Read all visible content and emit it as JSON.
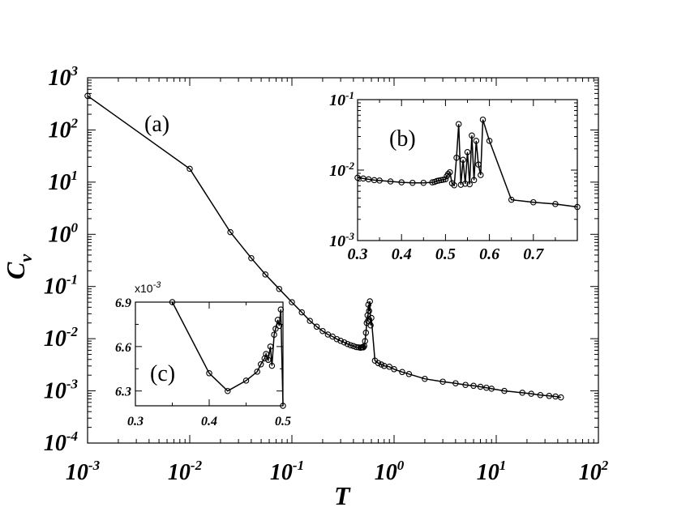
{
  "chart_data": [
    {
      "id": "main",
      "panel_label": "(a)",
      "type": "line",
      "xscale": "log",
      "yscale": "log",
      "xlabel": "T",
      "ylabel_base": "C",
      "ylabel_sub": "v",
      "xlim": [
        0.001,
        100
      ],
      "ylim": [
        0.0001,
        1000
      ],
      "x_tick_labels": [
        {
          "base": "10",
          "exp": "-3"
        },
        {
          "base": "10",
          "exp": "-2"
        },
        {
          "base": "10",
          "exp": "-1"
        },
        {
          "base": "10",
          "exp": "0"
        },
        {
          "base": "10",
          "exp": "1"
        },
        {
          "base": "10",
          "exp": "2"
        }
      ],
      "y_tick_labels": [
        {
          "base": "10",
          "exp": "-4"
        },
        {
          "base": "10",
          "exp": "-3"
        },
        {
          "base": "10",
          "exp": "-2"
        },
        {
          "base": "10",
          "exp": "-1"
        },
        {
          "base": "10",
          "exp": "0"
        },
        {
          "base": "10",
          "exp": "1"
        },
        {
          "base": "10",
          "exp": "2"
        },
        {
          "base": "10",
          "exp": "3"
        }
      ],
      "x": [
        0.001,
        0.01,
        0.025,
        0.04,
        0.055,
        0.075,
        0.1,
        0.125,
        0.15,
        0.175,
        0.2,
        0.225,
        0.25,
        0.275,
        0.3,
        0.325,
        0.35,
        0.375,
        0.4,
        0.425,
        0.45,
        0.47,
        0.48,
        0.49,
        0.5,
        0.51,
        0.52,
        0.53,
        0.54,
        0.55,
        0.555,
        0.56,
        0.57,
        0.58,
        0.59,
        0.6,
        0.65,
        0.7,
        0.75,
        0.8,
        0.9,
        1.0,
        1.2,
        1.4,
        2.0,
        3.0,
        4.0,
        5.0,
        6.0,
        7.0,
        8.0,
        9.0,
        12.0,
        18.0,
        22.0,
        27.0,
        33.0,
        38.0,
        43.0
      ],
      "y": [
        450,
        18,
        1.1,
        0.35,
        0.17,
        0.09,
        0.05,
        0.032,
        0.022,
        0.017,
        0.014,
        0.012,
        0.011,
        0.0098,
        0.0091,
        0.0085,
        0.0079,
        0.0075,
        0.0072,
        0.0069,
        0.0068,
        0.0067,
        0.0068,
        0.0069,
        0.0068,
        0.0072,
        0.009,
        0.013,
        0.02,
        0.028,
        0.022,
        0.045,
        0.034,
        0.052,
        0.018,
        0.025,
        0.0038,
        0.0034,
        0.0032,
        0.003,
        0.0029,
        0.0026,
        0.0023,
        0.0021,
        0.0017,
        0.0015,
        0.0014,
        0.0013,
        0.00125,
        0.0012,
        0.00115,
        0.0011,
        0.001,
        0.00092,
        0.00088,
        0.00083,
        0.0008,
        0.00078,
        0.00075
      ]
    },
    {
      "id": "inset_b",
      "panel_label": "(b)",
      "type": "line",
      "xscale": "linear",
      "yscale": "log",
      "xlim": [
        0.3,
        0.8
      ],
      "ylim": [
        0.001,
        0.1
      ],
      "x_ticks": [
        0.3,
        0.4,
        0.5,
        0.6,
        0.7
      ],
      "x_tick_labels": [
        "0.3",
        "0.4",
        "0.5",
        "0.6",
        "0.7"
      ],
      "y_tick_labels": [
        {
          "base": "10",
          "exp": "-3"
        },
        {
          "base": "10",
          "exp": "-2"
        },
        {
          "base": "10",
          "exp": "-1"
        }
      ],
      "x": [
        0.3,
        0.313,
        0.325,
        0.338,
        0.35,
        0.375,
        0.4,
        0.425,
        0.45,
        0.47,
        0.475,
        0.48,
        0.485,
        0.49,
        0.495,
        0.5,
        0.503,
        0.506,
        0.51,
        0.515,
        0.52,
        0.525,
        0.53,
        0.535,
        0.54,
        0.545,
        0.55,
        0.555,
        0.56,
        0.565,
        0.57,
        0.575,
        0.58,
        0.585,
        0.6,
        0.65,
        0.7,
        0.75,
        0.8
      ],
      "y": [
        0.0078,
        0.0076,
        0.0074,
        0.0072,
        0.0071,
        0.0069,
        0.0067,
        0.0066,
        0.0066,
        0.0067,
        0.0068,
        0.007,
        0.0071,
        0.0072,
        0.0073,
        0.0074,
        0.0082,
        0.0088,
        0.0093,
        0.0065,
        0.0061,
        0.015,
        0.045,
        0.0062,
        0.014,
        0.0064,
        0.018,
        0.0063,
        0.031,
        0.0072,
        0.026,
        0.012,
        0.0085,
        0.052,
        0.026,
        0.0038,
        0.0035,
        0.0033,
        0.003
      ]
    },
    {
      "id": "inset_c",
      "panel_label": "(c)",
      "type": "line",
      "xscale": "linear",
      "yscale": "linear",
      "xlim": [
        0.3,
        0.5
      ],
      "ylim": [
        6.2,
        6.9
      ],
      "multiplier": {
        "base": "x10",
        "exp": "-3"
      },
      "x_ticks": [
        0.3,
        0.4,
        0.5
      ],
      "x_tick_labels": [
        "0.3",
        "0.4",
        "0.5"
      ],
      "y_ticks": [
        6.3,
        6.6,
        6.9
      ],
      "y_tick_labels": [
        "6.3",
        "6.6",
        "6.9"
      ],
      "x": [
        0.35,
        0.4,
        0.425,
        0.45,
        0.465,
        0.47,
        0.475,
        0.477,
        0.48,
        0.483,
        0.485,
        0.488,
        0.49,
        0.493,
        0.495,
        0.497,
        0.5
      ],
      "y": [
        6.9,
        6.42,
        6.3,
        6.37,
        6.43,
        6.48,
        6.52,
        6.55,
        6.51,
        6.6,
        6.47,
        6.68,
        6.72,
        6.78,
        6.74,
        6.85,
        6.2
      ]
    }
  ]
}
